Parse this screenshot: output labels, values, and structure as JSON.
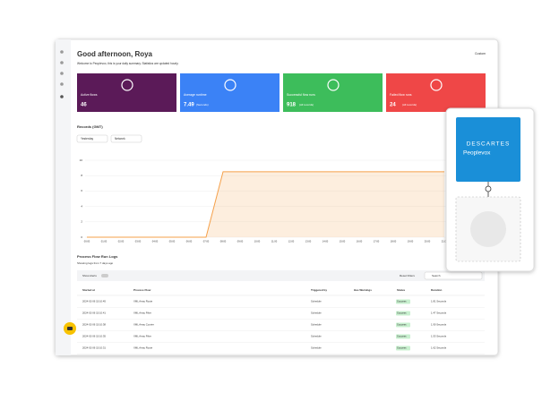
{
  "header": {
    "title": "Good afternoon, Roya",
    "subtitle": "Welcome to Peoplevox, this is your daily summary. Statistics are updated hourly.",
    "action": "Custom"
  },
  "stats": [
    {
      "label": "Active flows",
      "value": "46"
    },
    {
      "label": "Average runtime",
      "value": "7.49",
      "unit": "(Seconds)"
    },
    {
      "label": "Successful flow runs",
      "value": "918",
      "unit": "(All records)"
    },
    {
      "label": "Failed flow runs",
      "value": "24",
      "unit": "(All records)"
    }
  ],
  "records": {
    "title": "Records (GMT)",
    "filters": [
      "Yesterday",
      "Network"
    ],
    "ylim": [
      0,
      10
    ],
    "yticks": [
      0,
      2,
      4,
      6,
      8,
      10
    ],
    "categories": [
      "00:00",
      "01:00",
      "02:00",
      "03:00",
      "04:00",
      "05:00",
      "06:00",
      "07:00",
      "08:00",
      "09:00",
      "10:00",
      "11:00",
      "12:00",
      "13:00",
      "14:00",
      "15:00",
      "16:00",
      "17:00",
      "18:00",
      "19:00",
      "20:00",
      "21:00"
    ],
    "values": [
      0,
      0,
      0,
      0,
      0,
      0,
      0,
      0,
      8.5,
      8.5,
      8.5,
      8.5,
      8.5,
      8.5,
      8.5,
      8.5,
      8.5,
      8.5,
      8.5,
      8.5,
      8.5,
      8.5
    ],
    "color": "#f5a04a"
  },
  "logs": {
    "title": "Process Flow Run Logs",
    "subtitle": "Showing logs from 7 days ago",
    "toggle": "Show Alerts",
    "reset": "Reset Filters",
    "search": "Search",
    "columns": [
      "Started at",
      "Process Flow",
      "Triggered by",
      "Has Warnings",
      "Status",
      "Duration"
    ],
    "rows": [
      [
        "2024-02-06 15:10:45",
        "XML Array Route",
        "Schedule",
        "",
        "Success",
        "1.81 Seconds"
      ],
      [
        "2024-02-06 15:10:41",
        "XML Array Filter",
        "Schedule",
        "",
        "Success",
        "1.47 Seconds"
      ],
      [
        "2024-02-06 15:10:38",
        "XML Array Courier",
        "Schedule",
        "",
        "Success",
        "1.90 Seconds"
      ],
      [
        "2024-02-06 15:10:35",
        "XML Array Filter",
        "Schedule",
        "",
        "Success",
        "1.53 Seconds"
      ],
      [
        "2024-02-06 15:10:31",
        "XML Array Route",
        "Schedule",
        "",
        "Success",
        "1.62 Seconds"
      ]
    ]
  },
  "integration": {
    "brand": "DESCARTES",
    "product": "Peoplevox"
  }
}
